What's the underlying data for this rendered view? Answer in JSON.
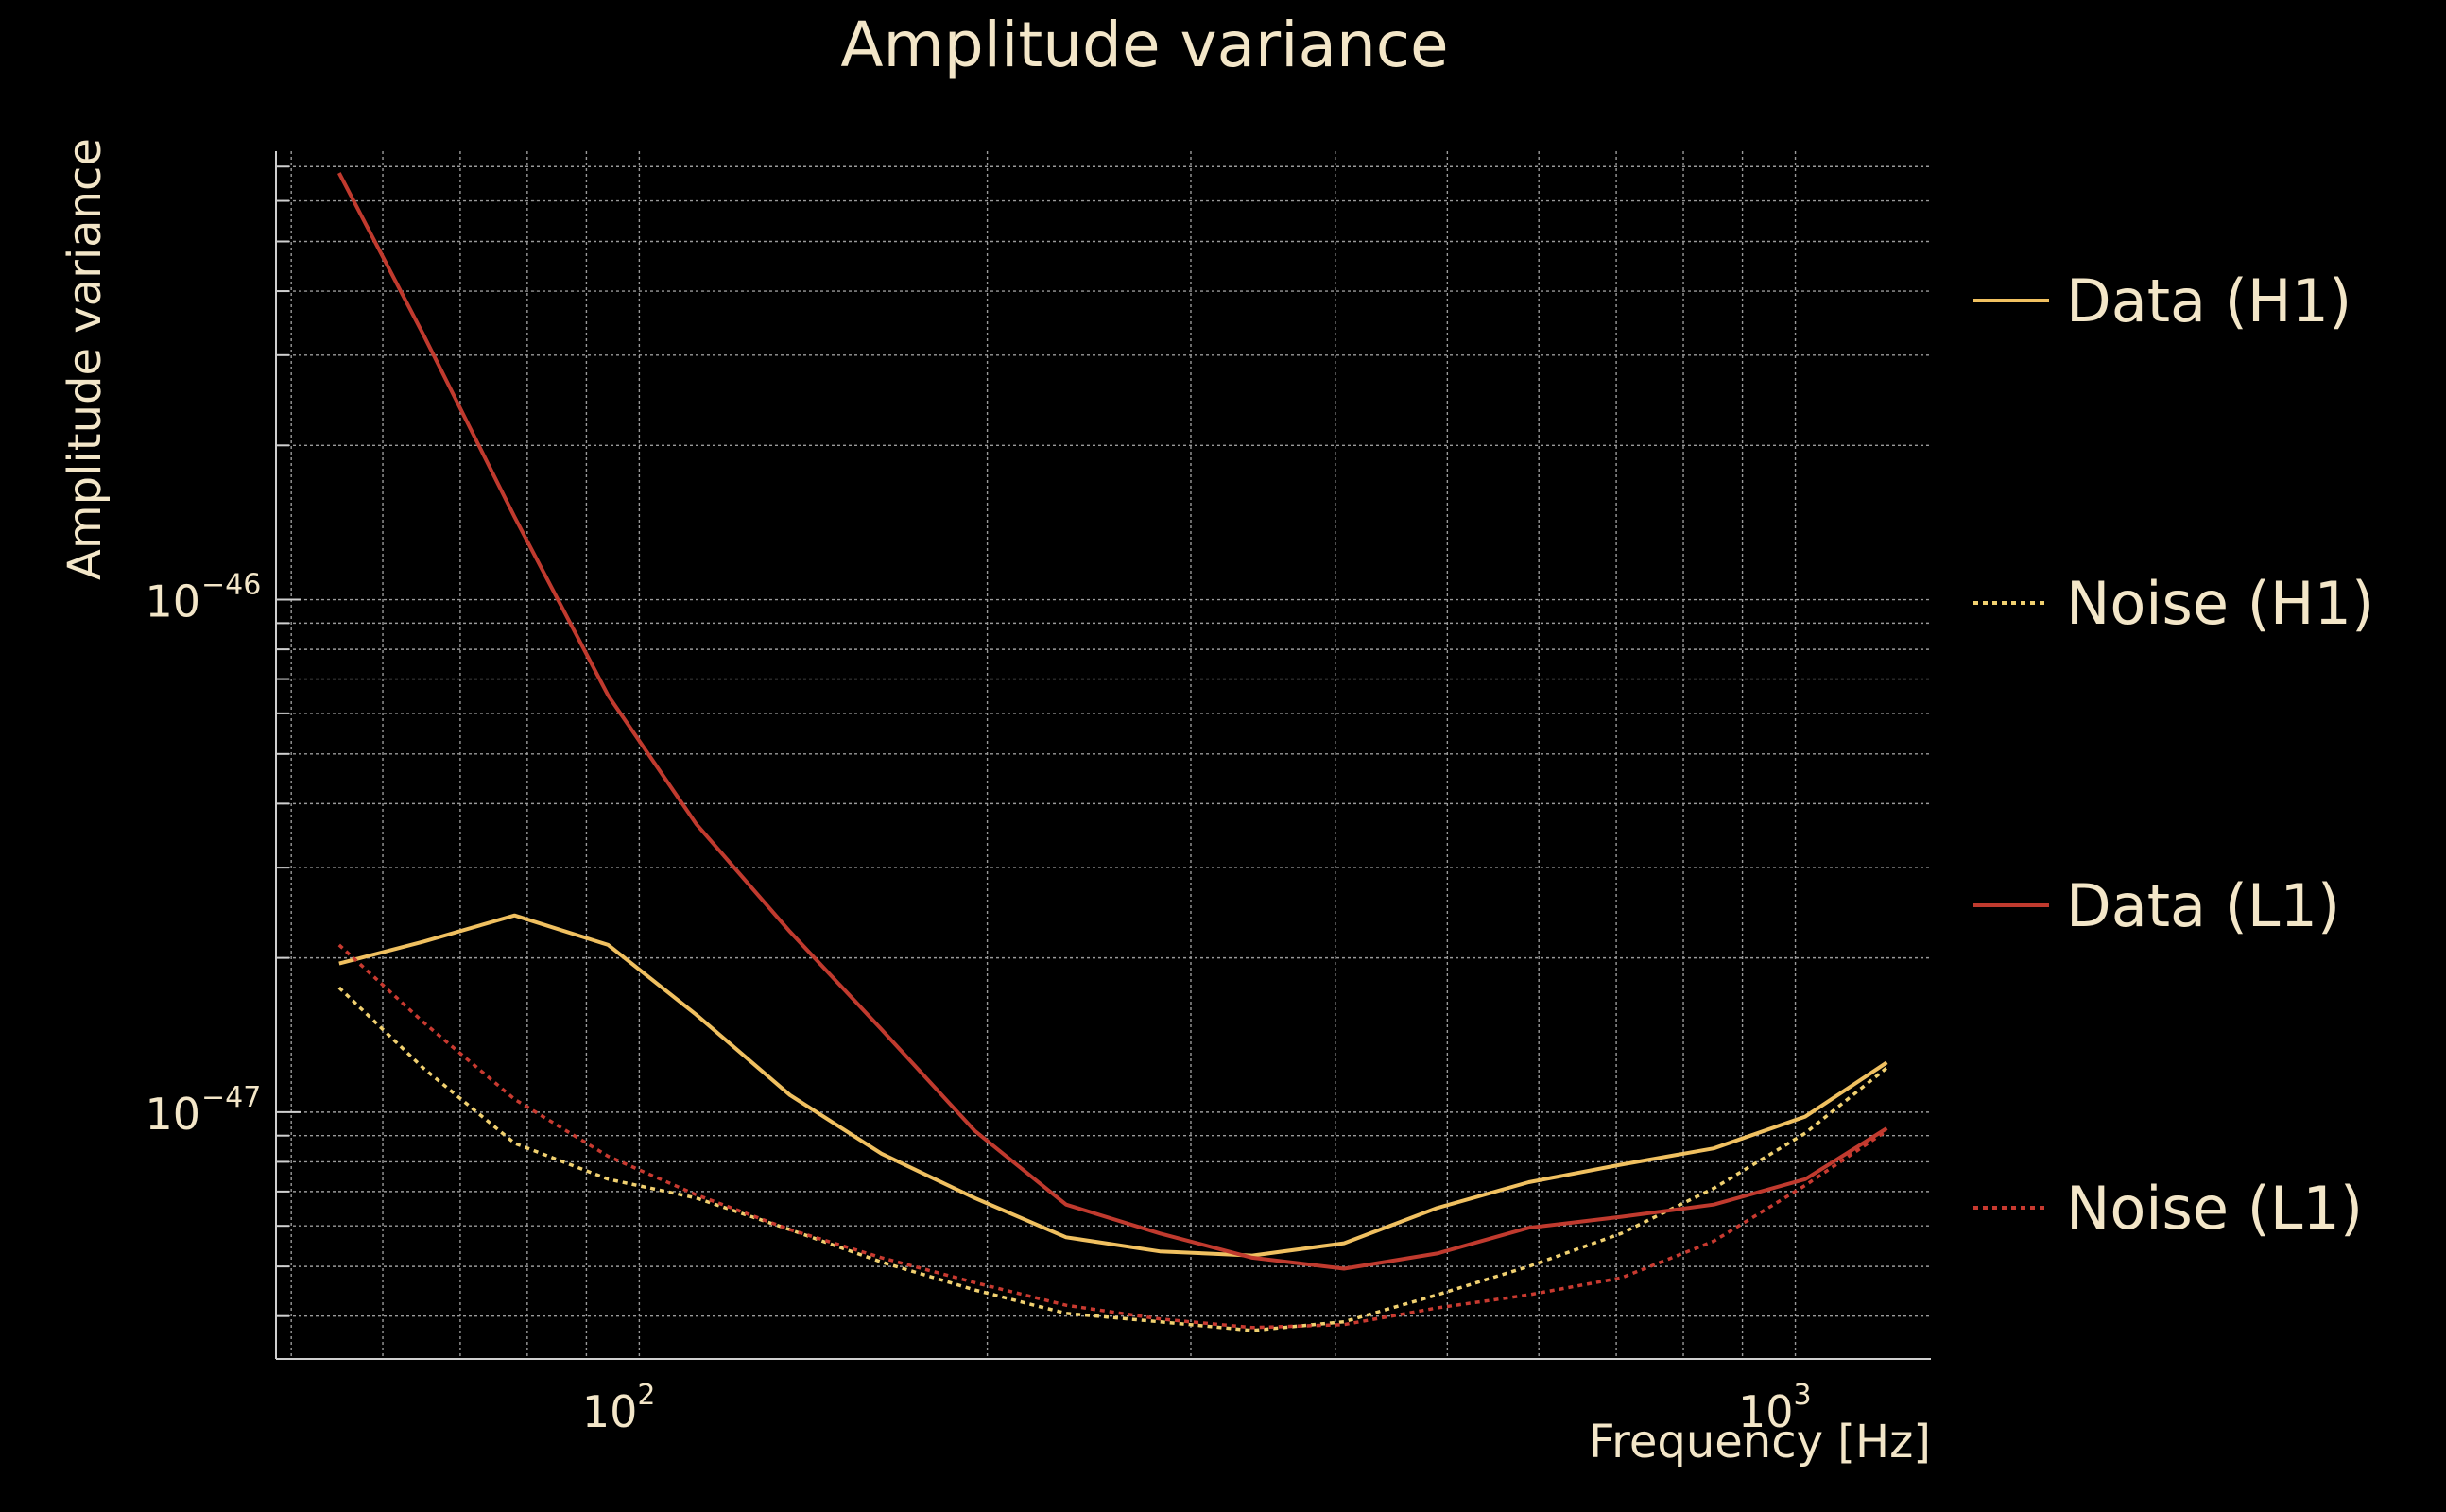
{
  "chart_data": {
    "type": "line",
    "title": "Amplitude variance",
    "xlabel": "Frequency [Hz]",
    "ylabel": "Amplitude variance",
    "xscale": "log",
    "yscale": "log",
    "xlim": [
      48.5,
      1310
    ],
    "ylim": [
      3.3e-48,
      7.5e-46
    ],
    "grid": true,
    "legend": "right",
    "x_ticks": [
      {
        "base": "10",
        "exp": "2",
        "value": 100
      },
      {
        "base": "10",
        "exp": "3",
        "value": 1000
      }
    ],
    "y_ticks": [
      {
        "base": "10",
        "exp": "−46",
        "value": 1e-46
      },
      {
        "base": "10",
        "exp": "−47",
        "value": 1e-47
      }
    ],
    "x": [
      55,
      65,
      78,
      94,
      112,
      135,
      162,
      195,
      234,
      282,
      339,
      407,
      490,
      588,
      707,
      850,
      1020,
      1200
    ],
    "series": [
      {
        "name": "Data (H1)",
        "color": "#f0c060",
        "dash": "solid",
        "values": [
          1.95e-47,
          2.15e-47,
          2.42e-47,
          2.12e-47,
          1.55e-47,
          1.08e-47,
          8.3e-48,
          6.8e-48,
          5.7e-48,
          5.35e-48,
          5.25e-48,
          5.55e-48,
          6.5e-48,
          7.3e-48,
          7.9e-48,
          8.5e-48,
          9.8e-48,
          1.25e-47
        ]
      },
      {
        "name": "Noise (H1)",
        "color": "#f0d070",
        "dash": "dotted",
        "values": [
          1.75e-47,
          1.22e-47,
          8.7e-48,
          7.4e-48,
          6.8e-48,
          5.9e-48,
          5.1e-48,
          4.5e-48,
          4.05e-48,
          3.9e-48,
          3.75e-48,
          3.9e-48,
          4.4e-48,
          5e-48,
          5.8e-48,
          7.1e-48,
          9.1e-48,
          1.22e-47
        ]
      },
      {
        "name": "Data (L1)",
        "color": "#c03a2e",
        "dash": "solid",
        "values": [
          6.8e-46,
          3.3e-46,
          1.45e-46,
          6.5e-47,
          3.65e-47,
          2.25e-47,
          1.45e-47,
          9.2e-48,
          6.6e-48,
          5.8e-48,
          5.2e-48,
          4.95e-48,
          5.3e-48,
          5.95e-48,
          6.25e-48,
          6.6e-48,
          7.4e-48,
          9.3e-48
        ]
      },
      {
        "name": "Noise (L1)",
        "color": "#c83a30",
        "dash": "dotted",
        "values": [
          2.12e-47,
          1.5e-47,
          1.06e-47,
          8.2e-48,
          6.9e-48,
          5.9e-48,
          5.2e-48,
          4.65e-48,
          4.2e-48,
          3.95e-48,
          3.8e-48,
          3.85e-48,
          4.15e-48,
          4.4e-48,
          4.75e-48,
          5.6e-48,
          7.2e-48,
          9.2e-48
        ]
      }
    ]
  }
}
